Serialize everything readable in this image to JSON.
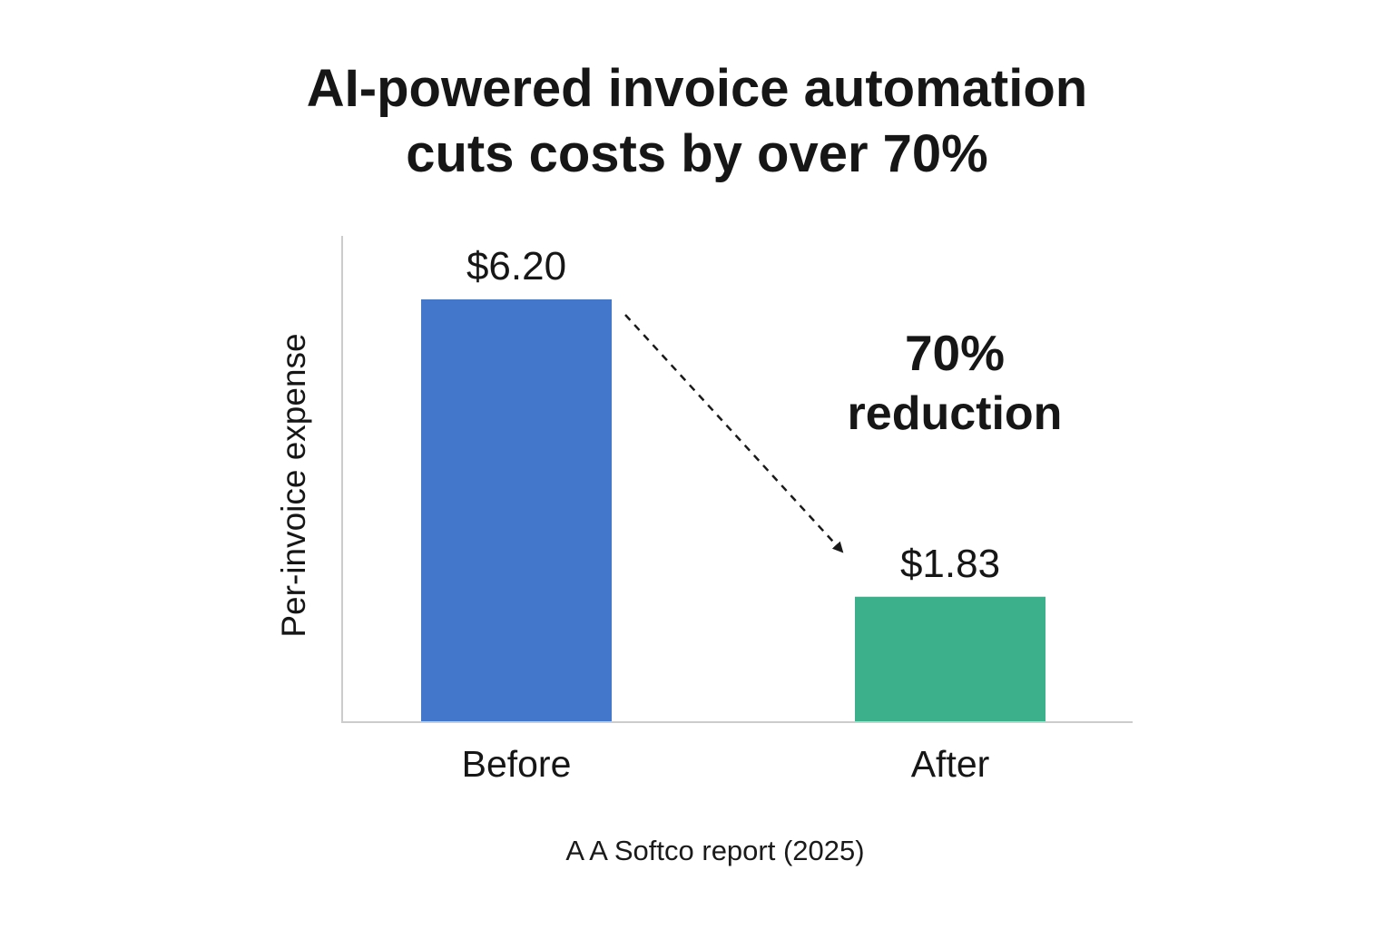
{
  "title_lines": [
    "AI-powered invoice automation",
    "cuts costs by over 70%"
  ],
  "source": "A A Softco report (2025)",
  "annotation": {
    "percent": "70%",
    "text": "reduction"
  },
  "chart_data": {
    "type": "bar",
    "title": "AI-powered invoice automation cuts costs by over 70%",
    "xlabel": "",
    "ylabel": "Per-invoice expense",
    "categories": [
      "Before",
      "After"
    ],
    "values": [
      6.2,
      1.83
    ],
    "value_labels": [
      "$6.20",
      "$1.83"
    ],
    "colors": [
      "#4277cb",
      "#3cb08b"
    ],
    "ylim": [
      0,
      7.2
    ],
    "grid": false,
    "legend": "none"
  }
}
